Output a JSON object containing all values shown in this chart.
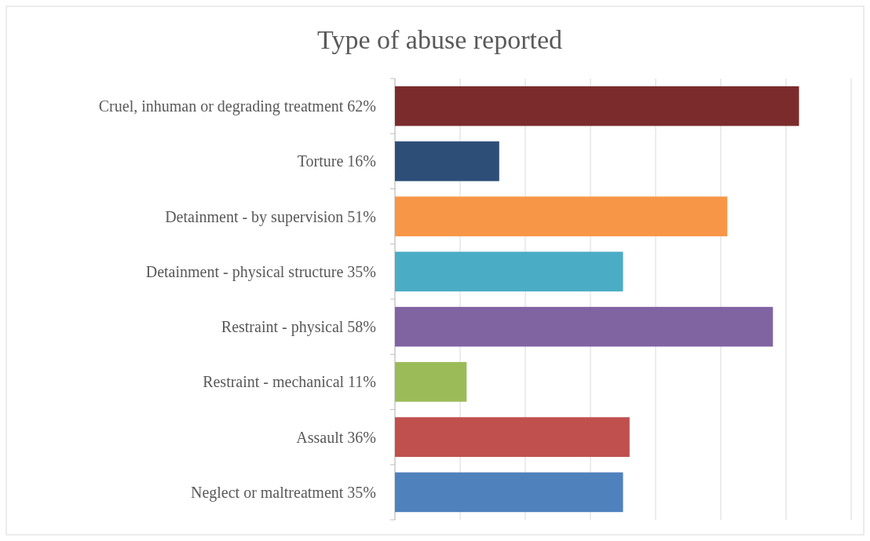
{
  "chart_data": {
    "type": "bar",
    "orientation": "horizontal",
    "title": "Type of abuse reported",
    "categories": [
      "Cruel, inhuman or degrading treatment",
      "Torture",
      "Detainment - by supervision",
      "Detainment - physical structure",
      "Restraint - physical",
      "Restraint - mechanical",
      "Assault",
      "Neglect or maltreatment"
    ],
    "values": [
      62,
      16,
      51,
      35,
      58,
      11,
      36,
      35
    ],
    "value_labels": [
      "62%",
      "16%",
      "51%",
      "35%",
      "58%",
      "11%",
      "36%",
      "35%"
    ],
    "colors": [
      "#7b2b2b",
      "#2d4e77",
      "#f79646",
      "#4bacc6",
      "#8064a2",
      "#9bbb59",
      "#c0504d",
      "#4f81bd"
    ],
    "xlim": [
      0,
      70
    ],
    "xticks": [
      {
        "value": 0,
        "label": null
      },
      {
        "value": 10,
        "label": null
      },
      {
        "value": 20,
        "label": null
      },
      {
        "value": 30,
        "label": null
      },
      {
        "value": 40,
        "label": null
      },
      {
        "value": 50,
        "label": null
      },
      {
        "value": 60,
        "label": null
      },
      {
        "value": 70,
        "label": null
      }
    ],
    "grid": "x"
  }
}
